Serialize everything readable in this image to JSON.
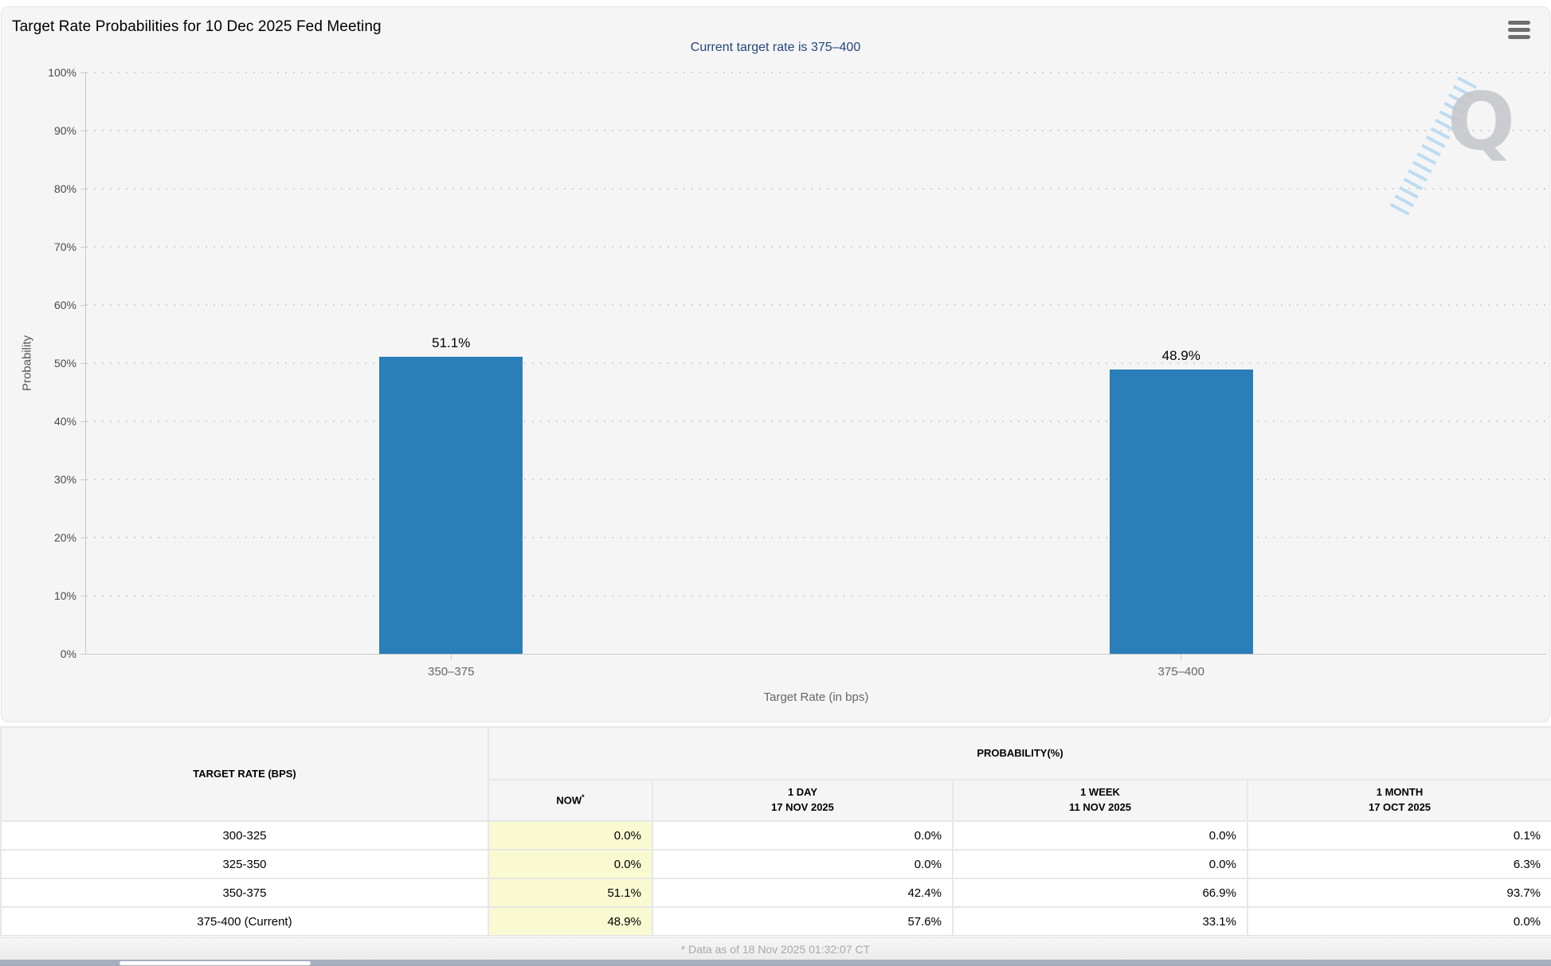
{
  "header": {
    "title": "Target Rate Probabilities for 10 Dec 2025 Fed Meeting",
    "menu_icon": "hamburger-icon"
  },
  "chart_data": {
    "type": "bar",
    "title": "Current target rate is 375–400",
    "categories": [
      "350–375",
      "375–400"
    ],
    "values": [
      51.1,
      48.9
    ],
    "data_labels": [
      "51.1%",
      "48.9%"
    ],
    "xlabel": "Target Rate (in bps)",
    "ylabel": "Probability",
    "ylim": [
      0,
      100
    ],
    "yticks": [
      {
        "value": 0,
        "label": "0%"
      },
      {
        "value": 10,
        "label": "10%"
      },
      {
        "value": 20,
        "label": "20%"
      },
      {
        "value": 30,
        "label": "30%"
      },
      {
        "value": 40,
        "label": "40%"
      },
      {
        "value": 50,
        "label": "50%"
      },
      {
        "value": 60,
        "label": "60%"
      },
      {
        "value": 70,
        "label": "70%"
      },
      {
        "value": 80,
        "label": "80%"
      },
      {
        "value": 90,
        "label": "90%"
      },
      {
        "value": 100,
        "label": "100%"
      }
    ],
    "grid": "dotted",
    "legend": "none",
    "bar_color": "#2a7eb9"
  },
  "watermark": {
    "letter": "Q"
  },
  "table": {
    "rate_header": "TARGET RATE (BPS)",
    "group_header": "PROBABILITY(%)",
    "columns": [
      {
        "line1": "NOW",
        "sup": "*",
        "line2": ""
      },
      {
        "line1": "1 DAY",
        "line2": "17 NOV 2025"
      },
      {
        "line1": "1 WEEK",
        "line2": "11 NOV 2025"
      },
      {
        "line1": "1 MONTH",
        "line2": "17 OCT 2025"
      }
    ],
    "rows": [
      {
        "rate": "300-325",
        "now": "0.0%",
        "day": "0.0%",
        "week": "0.0%",
        "month": "0.1%"
      },
      {
        "rate": "325-350",
        "now": "0.0%",
        "day": "0.0%",
        "week": "0.0%",
        "month": "6.3%"
      },
      {
        "rate": "350-375",
        "now": "51.1%",
        "day": "42.4%",
        "week": "66.9%",
        "month": "93.7%"
      },
      {
        "rate": "375-400 (Current)",
        "now": "48.9%",
        "day": "57.6%",
        "week": "33.1%",
        "month": "0.0%"
      }
    ]
  },
  "footer": {
    "note": "* Data as of 18 Nov 2025 01:32:07 CT"
  },
  "colors": {
    "bar": "#2a7eb9",
    "subtitle_navy": "#25477b",
    "now_column_yellow": "#fafad2",
    "scrollbar_track": "#a5aebe"
  }
}
